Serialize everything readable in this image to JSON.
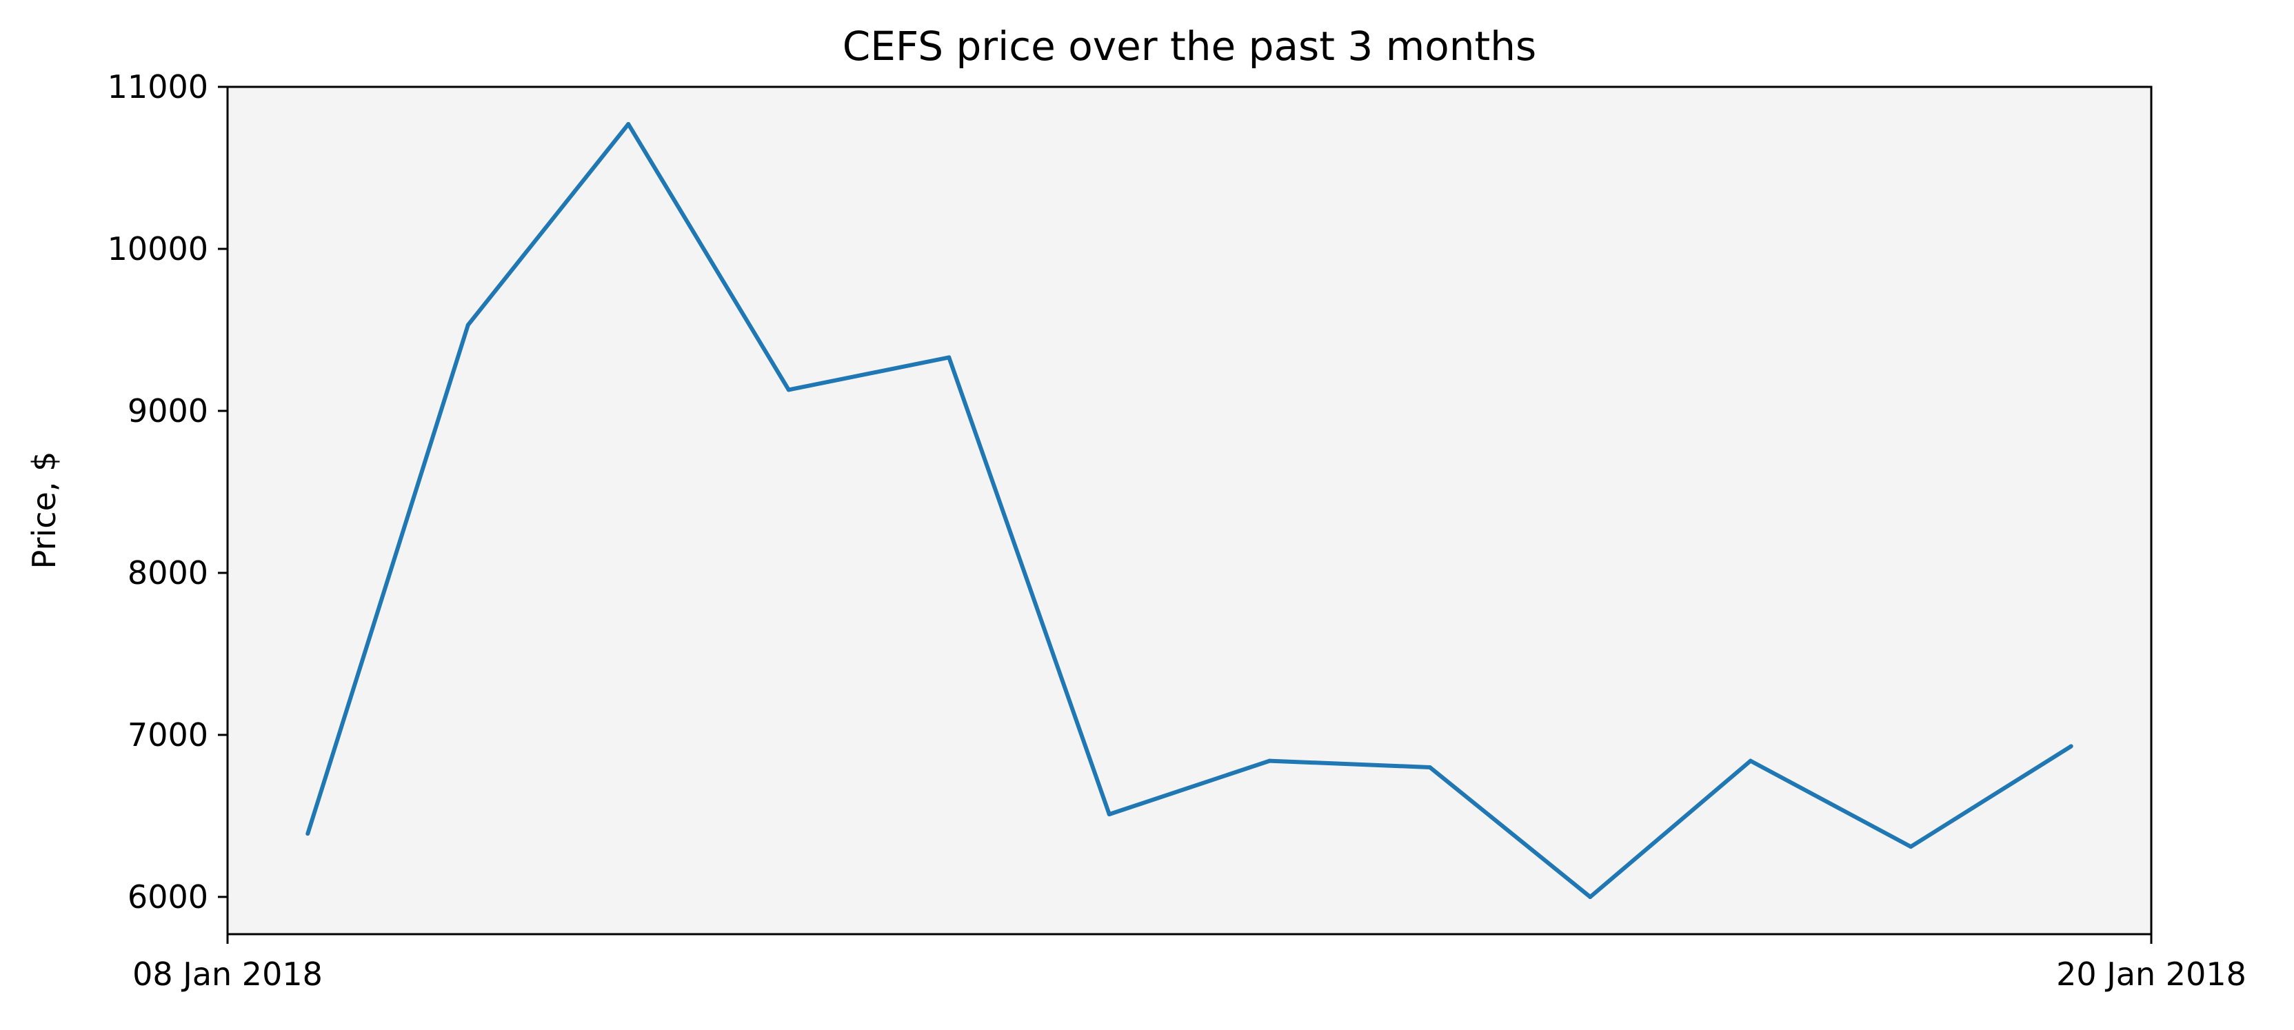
{
  "chart_data": {
    "type": "line",
    "title": "CEFS price over the past 3 months",
    "xlabel": "",
    "ylabel": "Price, $",
    "x": [
      "2018-01-08T12:00",
      "2018-01-09T12:00",
      "2018-01-10T12:00",
      "2018-01-11T12:00",
      "2018-01-12T12:00",
      "2018-01-13T12:00",
      "2018-01-14T12:00",
      "2018-01-15T12:00",
      "2018-01-16T12:00",
      "2018-01-17T12:00",
      "2018-01-18T12:00",
      "2018-01-19T12:00"
    ],
    "series": [
      {
        "values": [
          6390,
          9530,
          10770,
          9130,
          9330,
          6510,
          6840,
          6800,
          6000,
          6840,
          6310,
          6930
        ]
      }
    ],
    "xlim": [
      "2018-01-08",
      "2018-01-20"
    ],
    "ylim": [
      5770,
      11000
    ],
    "x_ticks": [
      {
        "date": "2018-01-08",
        "label": "08 Jan 2018"
      },
      {
        "date": "2018-01-20",
        "label": "20 Jan 2018"
      }
    ],
    "y_ticks": [
      6000,
      7000,
      8000,
      9000,
      10000,
      11000
    ],
    "grid": false,
    "colors": {
      "line": "#1f77b4",
      "plot_background": "#f4f4f4",
      "axes": "#000000"
    }
  }
}
